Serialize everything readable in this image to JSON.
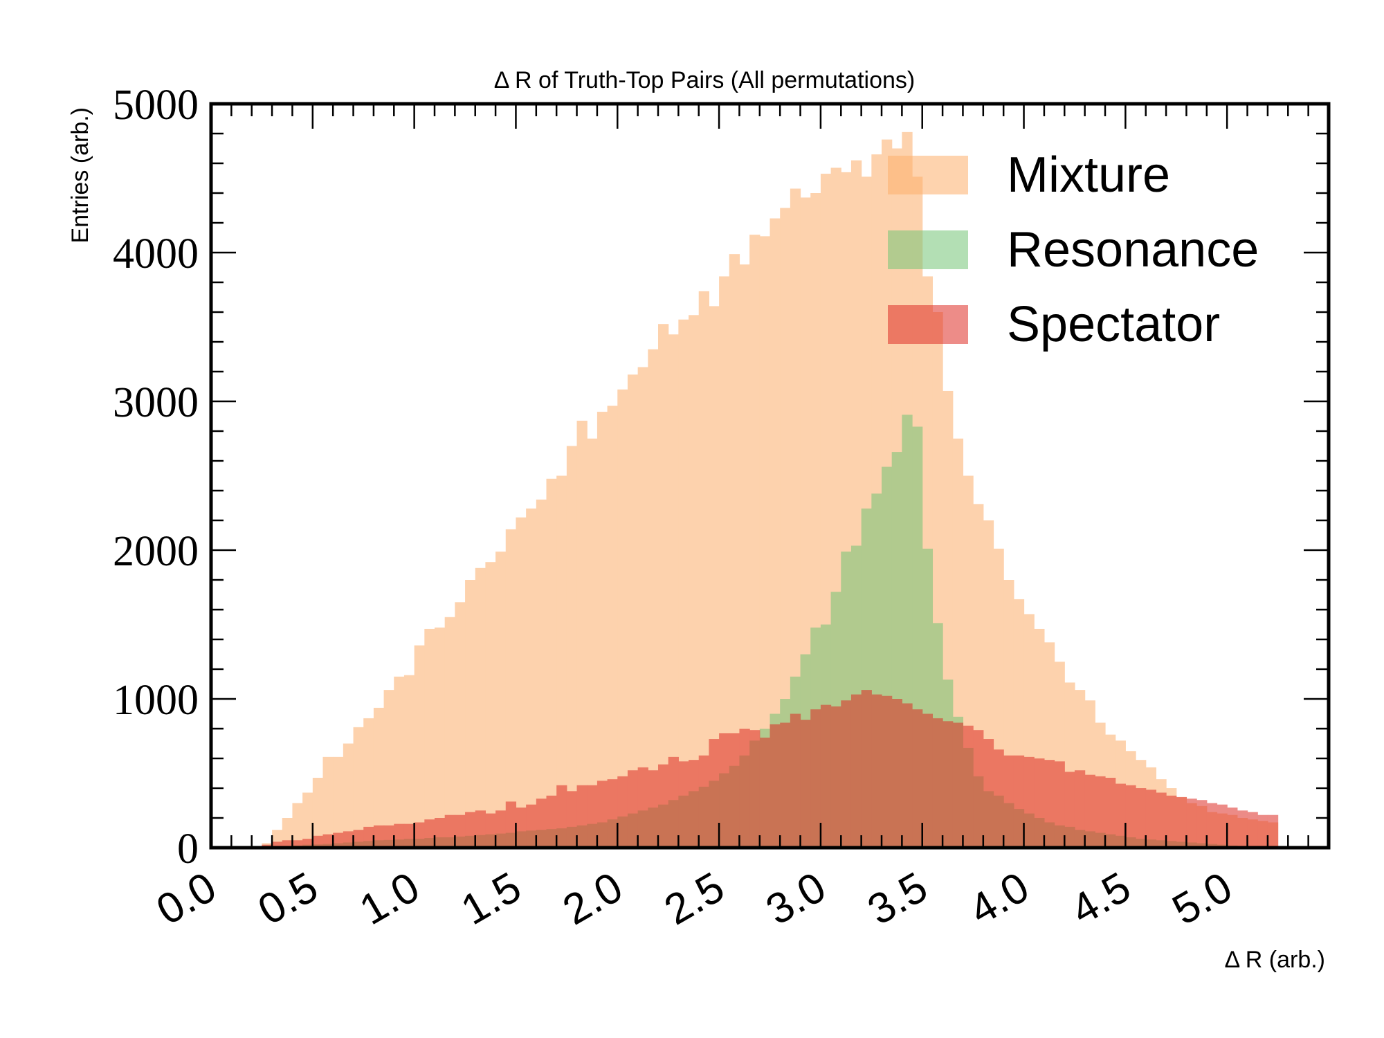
{
  "chart_data": {
    "type": "histogram",
    "title": "Δ R of Truth-Top Pairs (All permutations)",
    "xlabel": "Δ R (arb.)",
    "ylabel": "Entries (arb.)",
    "xlim": [
      0.0,
      5.5
    ],
    "ylim": [
      0,
      5000
    ],
    "xticks": [
      "0.0",
      "0.5",
      "1.0",
      "1.5",
      "2.0",
      "2.5",
      "3.0",
      "3.5",
      "4.0",
      "4.5",
      "5.0"
    ],
    "yticks": [
      "0",
      "1000",
      "2000",
      "3000",
      "4000",
      "5000"
    ],
    "legend_position": "top-right",
    "bin_edges_range": [
      0.25,
      5.25
    ],
    "bin_width": 0.05,
    "series": [
      {
        "name": "Mixture",
        "color": "#fdae6b",
        "values": [
          30,
          120,
          200,
          300,
          370,
          470,
          610,
          610,
          700,
          810,
          870,
          940,
          1060,
          1150,
          1160,
          1360,
          1470,
          1480,
          1550,
          1650,
          1800,
          1880,
          1920,
          1990,
          2140,
          2220,
          2280,
          2340,
          2480,
          2500,
          2700,
          2870,
          2750,
          2930,
          2970,
          3080,
          3180,
          3230,
          3350,
          3520,
          3450,
          3550,
          3580,
          3740,
          3640,
          3840,
          3990,
          3920,
          4120,
          4110,
          4230,
          4300,
          4430,
          4370,
          4400,
          4530,
          4570,
          4540,
          4620,
          4510,
          4660,
          4760,
          4700,
          4810,
          4510,
          3840,
          3600,
          3070,
          2750,
          2500,
          2310,
          2200,
          2010,
          1800,
          1670,
          1570,
          1470,
          1380,
          1250,
          1110,
          1060,
          990,
          840,
          760,
          720,
          650,
          590,
          540,
          460,
          400,
          340,
          300,
          280,
          240,
          230,
          220,
          200,
          190,
          180,
          170
        ]
      },
      {
        "name": "Resonance",
        "color": "#74c476",
        "values": [
          0,
          5,
          10,
          15,
          20,
          22,
          25,
          30,
          35,
          40,
          45,
          50,
          52,
          55,
          60,
          60,
          65,
          70,
          70,
          75,
          80,
          85,
          90,
          95,
          100,
          110,
          115,
          120,
          125,
          130,
          140,
          150,
          160,
          170,
          190,
          210,
          230,
          250,
          270,
          290,
          320,
          350,
          380,
          410,
          450,
          500,
          550,
          620,
          720,
          800,
          900,
          1000,
          1150,
          1300,
          1480,
          1500,
          1720,
          1990,
          2030,
          2280,
          2380,
          2560,
          2660,
          2910,
          2830,
          2010,
          1510,
          1130,
          880,
          670,
          480,
          380,
          350,
          300,
          260,
          230,
          200,
          170,
          150,
          140,
          120,
          110,
          100,
          90,
          80,
          70,
          60,
          55,
          50,
          45,
          40,
          35,
          30,
          25,
          20,
          15,
          10,
          8,
          5,
          3
        ]
      },
      {
        "name": "Spectator",
        "color": "#de2d26",
        "values": [
          20,
          40,
          50,
          50,
          60,
          80,
          90,
          100,
          110,
          120,
          140,
          150,
          150,
          160,
          160,
          170,
          190,
          200,
          220,
          220,
          240,
          250,
          230,
          250,
          310,
          270,
          290,
          330,
          350,
          420,
          380,
          420,
          420,
          450,
          460,
          480,
          520,
          540,
          520,
          560,
          610,
          580,
          590,
          620,
          730,
          770,
          770,
          800,
          790,
          740,
          830,
          840,
          900,
          860,
          930,
          960,
          950,
          990,
          1030,
          1060,
          1030,
          1020,
          1000,
          970,
          930,
          900,
          870,
          850,
          840,
          820,
          790,
          730,
          660,
          620,
          620,
          610,
          600,
          590,
          580,
          510,
          520,
          490,
          480,
          470,
          430,
          420,
          400,
          390,
          370,
          350,
          340,
          330,
          320,
          300,
          290,
          270,
          250,
          240,
          220,
          220
        ]
      }
    ]
  }
}
